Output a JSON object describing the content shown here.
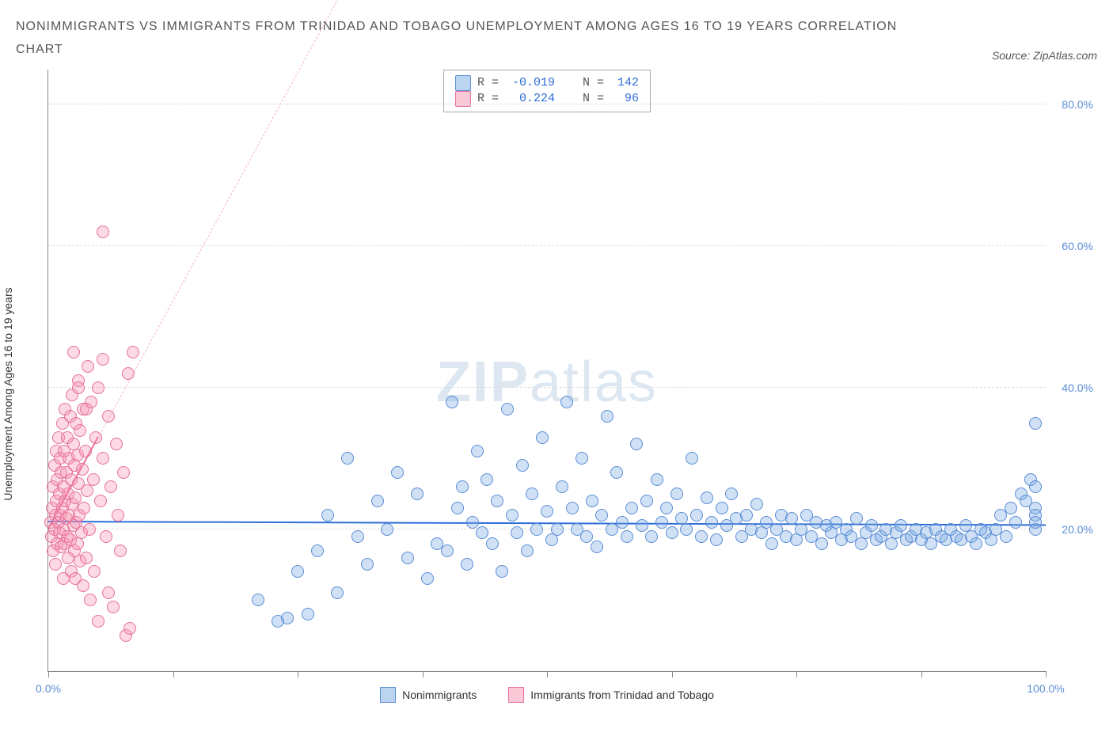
{
  "header": {
    "title": "NONIMMIGRANTS VS IMMIGRANTS FROM TRINIDAD AND TOBAGO UNEMPLOYMENT AMONG AGES 16 TO 19 YEARS CORRELATION CHART",
    "source": "Source: ZipAtlas.com"
  },
  "ylabel": "Unemployment Among Ages 16 to 19 years",
  "watermark": {
    "bold": "ZIP",
    "light": "atlas"
  },
  "chart": {
    "type": "scatter",
    "xlim": [
      0,
      100
    ],
    "ylim": [
      0,
      85
    ],
    "y_gridlines": [
      20,
      40,
      60,
      80
    ],
    "y_tick_labels": [
      "20.0%",
      "40.0%",
      "60.0%",
      "80.0%"
    ],
    "x_ticks": [
      0,
      12.5,
      25,
      37.5,
      50,
      62.5,
      75,
      87.5,
      100
    ],
    "x_tick_labels": {
      "0": "0.0%",
      "100": "100.0%"
    },
    "background_color": "#ffffff",
    "grid_color": "#dddddd",
    "axis_color": "#888888",
    "label_color": "#5b8dd6",
    "series": {
      "blue": {
        "label": "Nonimmigrants",
        "color_fill": "rgba(120,170,225,0.35)",
        "color_stroke": "#5b8dd6",
        "marker_radius": 8,
        "R": "-0.019",
        "N": "142",
        "regression": {
          "x1": 0,
          "y1": 21,
          "x2": 100,
          "y2": 20.5,
          "dash_extend": false
        },
        "points": [
          [
            21,
            10
          ],
          [
            23,
            7
          ],
          [
            24,
            7.5
          ],
          [
            25,
            14
          ],
          [
            26,
            8
          ],
          [
            27,
            17
          ],
          [
            28,
            22
          ],
          [
            29,
            11
          ],
          [
            30,
            30
          ],
          [
            31,
            19
          ],
          [
            32,
            15
          ],
          [
            33,
            24
          ],
          [
            34,
            20
          ],
          [
            35,
            28
          ],
          [
            36,
            16
          ],
          [
            37,
            25
          ],
          [
            38,
            13
          ],
          [
            39,
            18
          ],
          [
            40,
            17
          ],
          [
            40.5,
            38
          ],
          [
            41,
            23
          ],
          [
            41.5,
            26
          ],
          [
            42,
            15
          ],
          [
            42.5,
            21
          ],
          [
            43,
            31
          ],
          [
            43.5,
            19.5
          ],
          [
            44,
            27
          ],
          [
            44.5,
            18
          ],
          [
            45,
            24
          ],
          [
            45.5,
            14
          ],
          [
            46,
            37
          ],
          [
            46.5,
            22
          ],
          [
            47,
            19.5
          ],
          [
            47.5,
            29
          ],
          [
            48,
            17
          ],
          [
            48.5,
            25
          ],
          [
            49,
            20
          ],
          [
            49.5,
            33
          ],
          [
            50,
            22.5
          ],
          [
            50.5,
            18.5
          ],
          [
            51,
            20
          ],
          [
            51.5,
            26
          ],
          [
            52,
            38
          ],
          [
            52.5,
            23
          ],
          [
            53,
            20
          ],
          [
            53.5,
            30
          ],
          [
            54,
            19
          ],
          [
            54.5,
            24
          ],
          [
            55,
            17.5
          ],
          [
            55.5,
            22
          ],
          [
            56,
            36
          ],
          [
            56.5,
            20
          ],
          [
            57,
            28
          ],
          [
            57.5,
            21
          ],
          [
            58,
            19
          ],
          [
            58.5,
            23
          ],
          [
            59,
            32
          ],
          [
            59.5,
            20.5
          ],
          [
            60,
            24
          ],
          [
            60.5,
            19
          ],
          [
            61,
            27
          ],
          [
            61.5,
            21
          ],
          [
            62,
            23
          ],
          [
            62.5,
            19.5
          ],
          [
            63,
            25
          ],
          [
            63.5,
            21.5
          ],
          [
            64,
            20
          ],
          [
            64.5,
            30
          ],
          [
            65,
            22
          ],
          [
            65.5,
            19
          ],
          [
            66,
            24.5
          ],
          [
            66.5,
            21
          ],
          [
            67,
            18.5
          ],
          [
            67.5,
            23
          ],
          [
            68,
            20.5
          ],
          [
            68.5,
            25
          ],
          [
            69,
            21.5
          ],
          [
            69.5,
            19
          ],
          [
            70,
            22
          ],
          [
            70.5,
            20
          ],
          [
            71,
            23.5
          ],
          [
            71.5,
            19.5
          ],
          [
            72,
            21
          ],
          [
            72.5,
            18
          ],
          [
            73,
            20
          ],
          [
            73.5,
            22
          ],
          [
            74,
            19
          ],
          [
            74.5,
            21.5
          ],
          [
            75,
            18.5
          ],
          [
            75.5,
            20
          ],
          [
            76,
            22
          ],
          [
            76.5,
            19
          ],
          [
            77,
            21
          ],
          [
            77.5,
            18
          ],
          [
            78,
            20.5
          ],
          [
            78.5,
            19.5
          ],
          [
            79,
            21
          ],
          [
            79.5,
            18.5
          ],
          [
            80,
            20
          ],
          [
            80.5,
            19
          ],
          [
            81,
            21.5
          ],
          [
            81.5,
            18
          ],
          [
            82,
            19.5
          ],
          [
            82.5,
            20.5
          ],
          [
            83,
            18.5
          ],
          [
            83.5,
            19
          ],
          [
            84,
            20
          ],
          [
            84.5,
            18
          ],
          [
            85,
            19.5
          ],
          [
            85.5,
            20.5
          ],
          [
            86,
            18.5
          ],
          [
            86.5,
            19
          ],
          [
            87,
            20
          ],
          [
            87.5,
            18.5
          ],
          [
            88,
            19.5
          ],
          [
            88.5,
            18
          ],
          [
            89,
            20
          ],
          [
            89.5,
            19
          ],
          [
            90,
            18.5
          ],
          [
            90.5,
            20
          ],
          [
            91,
            19
          ],
          [
            91.5,
            18.5
          ],
          [
            92,
            20.5
          ],
          [
            92.5,
            19
          ],
          [
            93,
            18
          ],
          [
            93.5,
            20
          ],
          [
            94,
            19.5
          ],
          [
            94.5,
            18.5
          ],
          [
            95,
            20
          ],
          [
            95.5,
            22
          ],
          [
            96,
            19
          ],
          [
            96.5,
            23
          ],
          [
            97,
            21
          ],
          [
            97.5,
            25
          ],
          [
            98,
            24
          ],
          [
            98.5,
            27
          ],
          [
            99,
            35
          ],
          [
            99,
            26
          ],
          [
            99,
            23
          ],
          [
            99,
            22
          ],
          [
            99,
            20
          ],
          [
            99,
            21
          ]
        ]
      },
      "pink": {
        "label": "Immigrants from Trinidad and Tobago",
        "color_fill": "rgba(245,145,175,0.35)",
        "color_stroke": "#e6719a",
        "marker_radius": 8,
        "R": "0.224",
        "N": "96",
        "regression": {
          "x1": 0,
          "y1": 20,
          "x2": 5,
          "y2": 33,
          "dash_extend_to": [
            38,
            118
          ]
        },
        "points": [
          [
            0.2,
            21
          ],
          [
            0.3,
            19
          ],
          [
            0.4,
            23
          ],
          [
            0.5,
            17
          ],
          [
            0.5,
            26
          ],
          [
            0.6,
            20
          ],
          [
            0.6,
            29
          ],
          [
            0.7,
            22
          ],
          [
            0.7,
            15
          ],
          [
            0.8,
            24
          ],
          [
            0.8,
            31
          ],
          [
            0.9,
            18
          ],
          [
            0.9,
            27
          ],
          [
            1.0,
            21
          ],
          [
            1.0,
            33
          ],
          [
            1.1,
            19.5
          ],
          [
            1.1,
            25
          ],
          [
            1.2,
            22
          ],
          [
            1.2,
            30
          ],
          [
            1.3,
            17.5
          ],
          [
            1.3,
            28
          ],
          [
            1.4,
            23
          ],
          [
            1.4,
            35
          ],
          [
            1.5,
            20
          ],
          [
            1.5,
            26
          ],
          [
            1.6,
            18
          ],
          [
            1.6,
            31
          ],
          [
            1.7,
            24
          ],
          [
            1.7,
            37
          ],
          [
            1.8,
            21.5
          ],
          [
            1.8,
            28
          ],
          [
            1.9,
            19
          ],
          [
            1.9,
            33
          ],
          [
            2.0,
            25
          ],
          [
            2.0,
            16
          ],
          [
            2.1,
            30
          ],
          [
            2.1,
            22
          ],
          [
            2.2,
            36
          ],
          [
            2.2,
            18.5
          ],
          [
            2.3,
            27
          ],
          [
            2.3,
            14
          ],
          [
            2.4,
            23.5
          ],
          [
            2.4,
            39
          ],
          [
            2.5,
            20.5
          ],
          [
            2.5,
            32
          ],
          [
            2.6,
            17
          ],
          [
            2.6,
            29
          ],
          [
            2.7,
            24.5
          ],
          [
            2.7,
            13
          ],
          [
            2.8,
            35
          ],
          [
            2.8,
            21
          ],
          [
            2.9,
            30.5
          ],
          [
            2.9,
            18
          ],
          [
            3.0,
            26.5
          ],
          [
            3.0,
            41
          ],
          [
            3.1,
            22
          ],
          [
            3.2,
            15.5
          ],
          [
            3.2,
            34
          ],
          [
            3.3,
            19.5
          ],
          [
            3.4,
            28.5
          ],
          [
            3.5,
            12
          ],
          [
            3.5,
            37
          ],
          [
            3.6,
            23
          ],
          [
            3.7,
            31
          ],
          [
            3.8,
            16
          ],
          [
            3.9,
            25.5
          ],
          [
            4.0,
            43
          ],
          [
            4.1,
            20
          ],
          [
            4.2,
            10
          ],
          [
            4.3,
            38
          ],
          [
            4.5,
            27
          ],
          [
            4.6,
            14
          ],
          [
            4.8,
            33
          ],
          [
            5.0,
            7
          ],
          [
            5.0,
            40
          ],
          [
            5.2,
            24
          ],
          [
            5.5,
            30
          ],
          [
            5.5,
            44
          ],
          [
            5.8,
            19
          ],
          [
            6.0,
            36
          ],
          [
            6.0,
            11
          ],
          [
            6.3,
            26
          ],
          [
            6.5,
            9
          ],
          [
            6.8,
            32
          ],
          [
            7.0,
            22
          ],
          [
            7.2,
            17
          ],
          [
            7.5,
            28
          ],
          [
            7.8,
            5
          ],
          [
            8.0,
            42
          ],
          [
            8.2,
            6
          ],
          [
            8.5,
            45
          ],
          [
            5.5,
            62
          ],
          [
            2.5,
            45
          ],
          [
            3.0,
            40
          ],
          [
            3.8,
            37
          ],
          [
            1.5,
            13
          ]
        ]
      }
    }
  },
  "legend_stats": {
    "rows": [
      {
        "swatch": "blue",
        "r_label": "R = ",
        "r_val": "-0.019",
        "n_label": "   N = ",
        "n_val": "142"
      },
      {
        "swatch": "pink",
        "r_label": "R = ",
        "r_val": " 0.224",
        "n_label": "   N = ",
        "n_val": " 96"
      }
    ]
  },
  "bottom_legend": [
    {
      "swatch": "blue",
      "label": "Nonimmigrants"
    },
    {
      "swatch": "pink",
      "label": "Immigrants from Trinidad and Tobago"
    }
  ]
}
